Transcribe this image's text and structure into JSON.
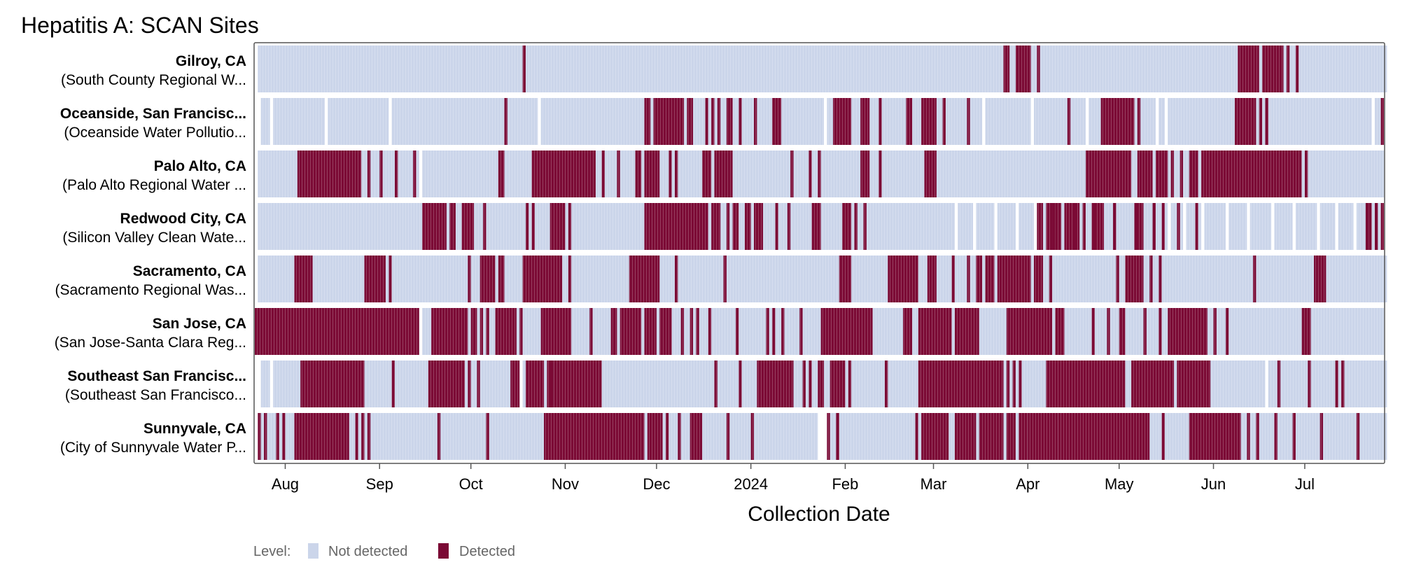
{
  "chart_data": {
    "type": "heatmap",
    "title": "Hepatitis A: SCAN Sites",
    "xlabel": "Collection Date",
    "ylabel": "",
    "x_start": "2023-07-22",
    "x_end": "2024-07-27",
    "x_ticks": [
      "Aug",
      "Sep",
      "Oct",
      "Nov",
      "Dec",
      "2024",
      "Feb",
      "Mar",
      "Apr",
      "May",
      "Jun",
      "Jul"
    ],
    "x_tick_dates": [
      "2023-08-01",
      "2023-09-01",
      "2023-10-01",
      "2023-11-01",
      "2023-12-01",
      "2024-01-01",
      "2024-02-01",
      "2024-03-01",
      "2024-04-01",
      "2024-05-01",
      "2024-06-01",
      "2024-07-01"
    ],
    "legend": {
      "title": "Level:",
      "position": "bottom-left",
      "items": [
        {
          "label": "Not detected",
          "color": "#cbd5ea"
        },
        {
          "label": "Detected",
          "color": "#7b0a35"
        }
      ]
    },
    "colors": {
      "not_detected": "#cbd5ea",
      "detected": "#7b0a35",
      "gap": "#ffffff",
      "frame": "#555555"
    },
    "sites": [
      {
        "name": "Gilroy, CA",
        "plant": "(South County Regional W...",
        "sampled": [
          [
            "2023-07-23",
            "2024-07-27"
          ]
        ],
        "detected": [
          "2023-10-18",
          [
            "2024-03-24",
            "2024-03-25"
          ],
          [
            "2024-03-28",
            "2024-04-01"
          ],
          "2024-04-04",
          [
            "2024-06-09",
            "2024-06-15"
          ],
          [
            "2024-06-17",
            "2024-06-23"
          ],
          "2024-06-25",
          "2024-06-28"
        ]
      },
      {
        "name": "Oceanside, San Francisc...",
        "plant": "(Oceanside Water Pollutio...",
        "sampled": [
          [
            "2023-07-24",
            "2023-07-26"
          ],
          [
            "2023-07-28",
            "2023-08-13"
          ],
          [
            "2023-08-15",
            "2023-09-03"
          ],
          [
            "2023-09-05",
            "2023-10-22"
          ],
          [
            "2023-10-24",
            "2024-01-24"
          ],
          [
            "2024-01-26",
            "2024-03-16"
          ],
          [
            "2024-03-18",
            "2024-04-01"
          ],
          [
            "2024-04-03",
            "2024-04-19"
          ],
          [
            "2024-04-21",
            "2024-05-12"
          ],
          [
            "2024-05-14",
            "2024-05-15"
          ],
          [
            "2024-05-17",
            "2024-06-17"
          ],
          [
            "2024-06-19",
            "2024-07-22"
          ],
          [
            "2024-07-24",
            "2024-07-26"
          ]
        ],
        "detected": [
          "2023-10-12",
          [
            "2023-11-27",
            "2023-11-28"
          ],
          [
            "2023-11-30",
            "2023-12-09"
          ],
          [
            "2023-12-11",
            "2023-12-12"
          ],
          "2023-12-17",
          "2023-12-19",
          "2023-12-21",
          [
            "2023-12-24",
            "2023-12-25"
          ],
          "2023-12-28",
          "2024-01-02",
          [
            "2024-01-08",
            "2024-01-10"
          ],
          [
            "2024-01-28",
            "2024-02-02"
          ],
          [
            "2024-02-06",
            "2024-02-08"
          ],
          "2024-02-12",
          [
            "2024-02-21",
            "2024-02-22"
          ],
          [
            "2024-02-26",
            "2024-03-01"
          ],
          "2024-03-04",
          "2024-03-12",
          "2024-04-14",
          [
            "2024-04-25",
            "2024-05-05"
          ],
          "2024-05-07",
          [
            "2024-06-08",
            "2024-06-14"
          ],
          "2024-06-16",
          "2024-06-18",
          "2024-07-26"
        ]
      },
      {
        "name": "Palo Alto, CA",
        "plant": "(Palo Alto Regional Water ...",
        "sampled": [
          [
            "2023-07-23",
            "2023-09-13"
          ],
          [
            "2023-09-15",
            "2024-07-26"
          ]
        ],
        "detected": [
          [
            "2023-08-05",
            "2023-08-25"
          ],
          "2023-08-28",
          "2023-09-01",
          "2023-09-06",
          "2023-09-12",
          [
            "2023-10-10",
            "2023-10-11"
          ],
          [
            "2023-10-21",
            "2023-11-10"
          ],
          "2023-11-13",
          "2023-11-18",
          [
            "2023-11-24",
            "2023-11-25"
          ],
          [
            "2023-11-27",
            "2023-12-01"
          ],
          "2023-12-05",
          "2023-12-07",
          [
            "2023-12-16",
            "2023-12-18"
          ],
          [
            "2023-12-20",
            "2023-12-25"
          ],
          "2024-01-14",
          "2024-01-20",
          "2024-01-23",
          [
            "2024-02-06",
            "2024-02-08"
          ],
          "2024-02-12",
          [
            "2024-02-27",
            "2024-03-01"
          ],
          [
            "2024-04-20",
            "2024-05-04"
          ],
          [
            "2024-05-07",
            "2024-05-11"
          ],
          [
            "2024-05-13",
            "2024-05-16"
          ],
          "2024-05-18",
          "2024-05-21",
          [
            "2024-05-24",
            "2024-05-26"
          ],
          [
            "2024-05-28",
            "2024-06-16"
          ],
          [
            "2024-06-17",
            "2024-06-29"
          ],
          "2024-07-01"
        ]
      },
      {
        "name": "Redwood City, CA",
        "plant": "(Silicon Valley Clean Wate...",
        "sampled": [
          [
            "2023-07-23",
            "2024-03-07"
          ],
          [
            "2024-03-09",
            "2024-03-13"
          ],
          [
            "2024-03-15",
            "2024-03-20"
          ],
          [
            "2024-03-22",
            "2024-03-27"
          ],
          [
            "2024-03-29",
            "2024-04-02"
          ],
          [
            "2024-04-04",
            "2024-04-08"
          ],
          [
            "2024-04-10",
            "2024-04-15"
          ],
          [
            "2024-04-17",
            "2024-04-21"
          ],
          [
            "2024-04-23",
            "2024-04-28"
          ],
          [
            "2024-04-30",
            "2024-05-05"
          ],
          [
            "2024-05-07",
            "2024-05-11"
          ],
          [
            "2024-05-13",
            "2024-05-16"
          ],
          [
            "2024-05-18",
            "2024-05-21"
          ],
          [
            "2024-05-23",
            "2024-05-27"
          ],
          [
            "2024-05-29",
            "2024-06-04"
          ],
          [
            "2024-06-06",
            "2024-06-11"
          ],
          [
            "2024-06-13",
            "2024-06-19"
          ],
          [
            "2024-06-21",
            "2024-06-26"
          ],
          [
            "2024-06-28",
            "2024-07-04"
          ],
          [
            "2024-07-06",
            "2024-07-10"
          ],
          [
            "2024-07-12",
            "2024-07-16"
          ],
          [
            "2024-07-18",
            "2024-07-20"
          ],
          [
            "2024-07-22",
            "2024-07-23"
          ],
          [
            "2024-07-25",
            "2024-07-26"
          ]
        ],
        "detected": [
          [
            "2023-09-15",
            "2023-09-22"
          ],
          [
            "2023-09-24",
            "2023-09-25"
          ],
          [
            "2023-09-28",
            "2023-10-01"
          ],
          "2023-10-05",
          "2023-10-19",
          "2023-10-21",
          [
            "2023-10-27",
            "2023-10-31"
          ],
          "2023-11-02",
          [
            "2023-11-27",
            "2023-12-17"
          ],
          [
            "2023-12-19",
            "2023-12-21"
          ],
          "2023-12-24",
          [
            "2023-12-26",
            "2023-12-27"
          ],
          [
            "2023-12-30",
            "2023-12-31"
          ],
          [
            "2024-01-02",
            "2024-01-04"
          ],
          "2024-01-09",
          "2024-01-13",
          [
            "2024-01-21",
            "2024-01-23"
          ],
          [
            "2024-01-31",
            "2024-02-02"
          ],
          "2024-02-04",
          "2024-02-07",
          [
            "2024-04-04",
            "2024-04-05"
          ],
          [
            "2024-04-07",
            "2024-04-11"
          ],
          [
            "2024-04-13",
            "2024-04-17"
          ],
          "2024-04-19",
          [
            "2024-04-22",
            "2024-04-25"
          ],
          "2024-04-29",
          [
            "2024-05-06",
            "2024-05-08"
          ],
          "2024-05-12",
          "2024-05-15",
          "2024-05-20",
          "2024-05-26",
          [
            "2024-07-21",
            "2024-07-22"
          ],
          "2024-07-24",
          "2024-07-26"
        ]
      },
      {
        "name": "Sacramento, CA",
        "plant": "(Sacramento Regional Was...",
        "sampled": [
          [
            "2023-07-23",
            "2024-07-27"
          ]
        ],
        "detected": [
          [
            "2023-08-04",
            "2023-08-09"
          ],
          [
            "2023-08-27",
            "2023-09-02"
          ],
          "2023-09-04",
          "2023-09-30",
          [
            "2023-10-04",
            "2023-10-08"
          ],
          [
            "2023-10-10",
            "2023-10-11"
          ],
          [
            "2023-10-18",
            "2023-10-30"
          ],
          "2023-11-02",
          [
            "2023-11-22",
            "2023-12-01"
          ],
          "2023-12-07",
          "2023-12-23",
          [
            "2024-01-30",
            "2024-02-02"
          ],
          [
            "2024-02-15",
            "2024-02-24"
          ],
          [
            "2024-02-28",
            "2024-03-01"
          ],
          "2024-03-07",
          "2024-03-12",
          [
            "2024-03-15",
            "2024-03-16"
          ],
          [
            "2024-03-18",
            "2024-03-20"
          ],
          [
            "2024-03-22",
            "2024-04-01"
          ],
          [
            "2024-04-03",
            "2024-04-05"
          ],
          "2024-04-08",
          "2024-04-30",
          [
            "2024-05-03",
            "2024-05-08"
          ],
          "2024-05-11",
          "2024-05-14",
          "2024-06-14",
          [
            "2024-07-04",
            "2024-07-07"
          ]
        ],
        "_note": ""
      },
      {
        "name": "San Jose, CA",
        "plant": "(San Jose-Santa Clara Reg...",
        "sampled": [
          [
            "2023-07-22",
            "2023-09-13"
          ],
          [
            "2023-09-15",
            "2024-07-26"
          ]
        ],
        "detected": [
          [
            "2023-07-22",
            "2023-09-13"
          ],
          [
            "2023-09-18",
            "2023-09-29"
          ],
          [
            "2023-10-01",
            "2023-10-02"
          ],
          "2023-10-04",
          "2023-10-06",
          [
            "2023-10-09",
            "2023-10-15"
          ],
          "2023-10-17",
          [
            "2023-10-24",
            "2023-11-02"
          ],
          "2023-11-09",
          [
            "2023-11-16",
            "2023-11-17"
          ],
          [
            "2023-11-19",
            "2023-11-25"
          ],
          [
            "2023-11-27",
            "2023-11-30"
          ],
          [
            "2023-12-02",
            "2023-12-05"
          ],
          "2023-12-09",
          "2023-12-12",
          "2023-12-14",
          "2023-12-18",
          "2023-12-27",
          "2024-01-06",
          "2024-01-08",
          "2024-01-11",
          "2024-01-17",
          [
            "2024-01-24",
            "2024-02-09"
          ],
          [
            "2024-02-20",
            "2024-02-22"
          ],
          [
            "2024-02-25",
            "2024-03-06"
          ],
          [
            "2024-03-08",
            "2024-03-15"
          ],
          [
            "2024-03-25",
            "2024-04-08"
          ],
          [
            "2024-04-10",
            "2024-04-12"
          ],
          "2024-04-22",
          "2024-04-27",
          [
            "2024-05-01",
            "2024-05-02"
          ],
          "2024-05-09",
          "2024-05-14",
          [
            "2024-05-17",
            "2024-05-29"
          ],
          "2024-06-01",
          "2024-06-05",
          [
            "2024-06-30",
            "2024-07-02"
          ]
        ]
      },
      {
        "name": "Southeast San Francisc...",
        "plant": "(Southeast San Francisco...",
        "sampled": [
          [
            "2023-07-24",
            "2023-07-26"
          ],
          [
            "2023-07-28",
            "2023-10-16"
          ],
          [
            "2023-10-18",
            "2023-10-26"
          ],
          [
            "2023-10-28",
            "2024-06-17"
          ],
          [
            "2024-06-19",
            "2024-07-27"
          ]
        ],
        "detected": [
          [
            "2023-08-06",
            "2023-08-26"
          ],
          "2023-09-05",
          [
            "2023-09-17",
            "2023-09-28"
          ],
          "2023-09-30",
          "2023-10-03",
          [
            "2023-10-14",
            "2023-10-16"
          ],
          [
            "2023-10-19",
            "2023-10-24"
          ],
          [
            "2023-10-26",
            "2023-10-27"
          ],
          [
            "2023-10-28",
            "2023-11-12"
          ],
          "2023-12-20",
          "2023-12-28",
          [
            "2024-01-03",
            "2024-01-14"
          ],
          "2024-01-18",
          "2024-01-20",
          [
            "2024-01-23",
            "2024-01-24"
          ],
          [
            "2024-01-27",
            "2024-01-31"
          ],
          "2024-02-02",
          "2024-02-14",
          [
            "2024-02-25",
            "2024-03-23"
          ],
          "2024-03-25",
          "2024-03-27",
          "2024-03-29",
          [
            "2024-04-07",
            "2024-05-02"
          ],
          [
            "2024-05-05",
            "2024-05-18"
          ],
          [
            "2024-05-20",
            "2024-05-30"
          ],
          "2024-06-22",
          "2024-07-02",
          "2024-07-11",
          "2024-07-13"
        ]
      },
      {
        "name": "Sunnyvale, CA",
        "plant": "(City of Sunnyvale Water P...",
        "sampled": [
          [
            "2023-07-23",
            "2024-01-22"
          ],
          [
            "2024-01-26",
            "2024-01-28"
          ],
          [
            "2024-01-30",
            "2024-07-27"
          ]
        ],
        "detected": [
          "2023-07-23",
          "2023-07-25",
          "2023-07-29",
          "2023-07-31",
          [
            "2023-08-04",
            "2023-08-21"
          ],
          "2023-08-24",
          "2023-08-26",
          "2023-08-28",
          "2023-09-20",
          "2023-10-06",
          [
            "2023-10-25",
            "2023-11-26"
          ],
          [
            "2023-11-28",
            "2023-12-02"
          ],
          "2023-12-04",
          "2023-12-08",
          [
            "2023-12-12",
            "2023-12-15"
          ],
          "2023-12-24",
          "2024-01-01",
          "2024-01-26",
          "2024-01-29",
          "2024-02-24",
          [
            "2024-02-26",
            "2024-03-05"
          ],
          [
            "2024-03-08",
            "2024-03-14"
          ],
          [
            "2024-03-16",
            "2024-03-23"
          ],
          [
            "2024-03-25",
            "2024-03-27"
          ],
          [
            "2024-03-29",
            "2024-03-31"
          ],
          [
            "2024-04-01",
            "2024-04-10"
          ],
          [
            "2024-04-11",
            "2024-05-10"
          ],
          "2024-05-15",
          [
            "2024-05-24",
            "2024-06-09"
          ],
          "2024-06-12",
          "2024-06-15",
          "2024-06-21",
          "2024-06-27",
          "2024-07-06",
          "2024-07-18"
        ]
      }
    ]
  }
}
